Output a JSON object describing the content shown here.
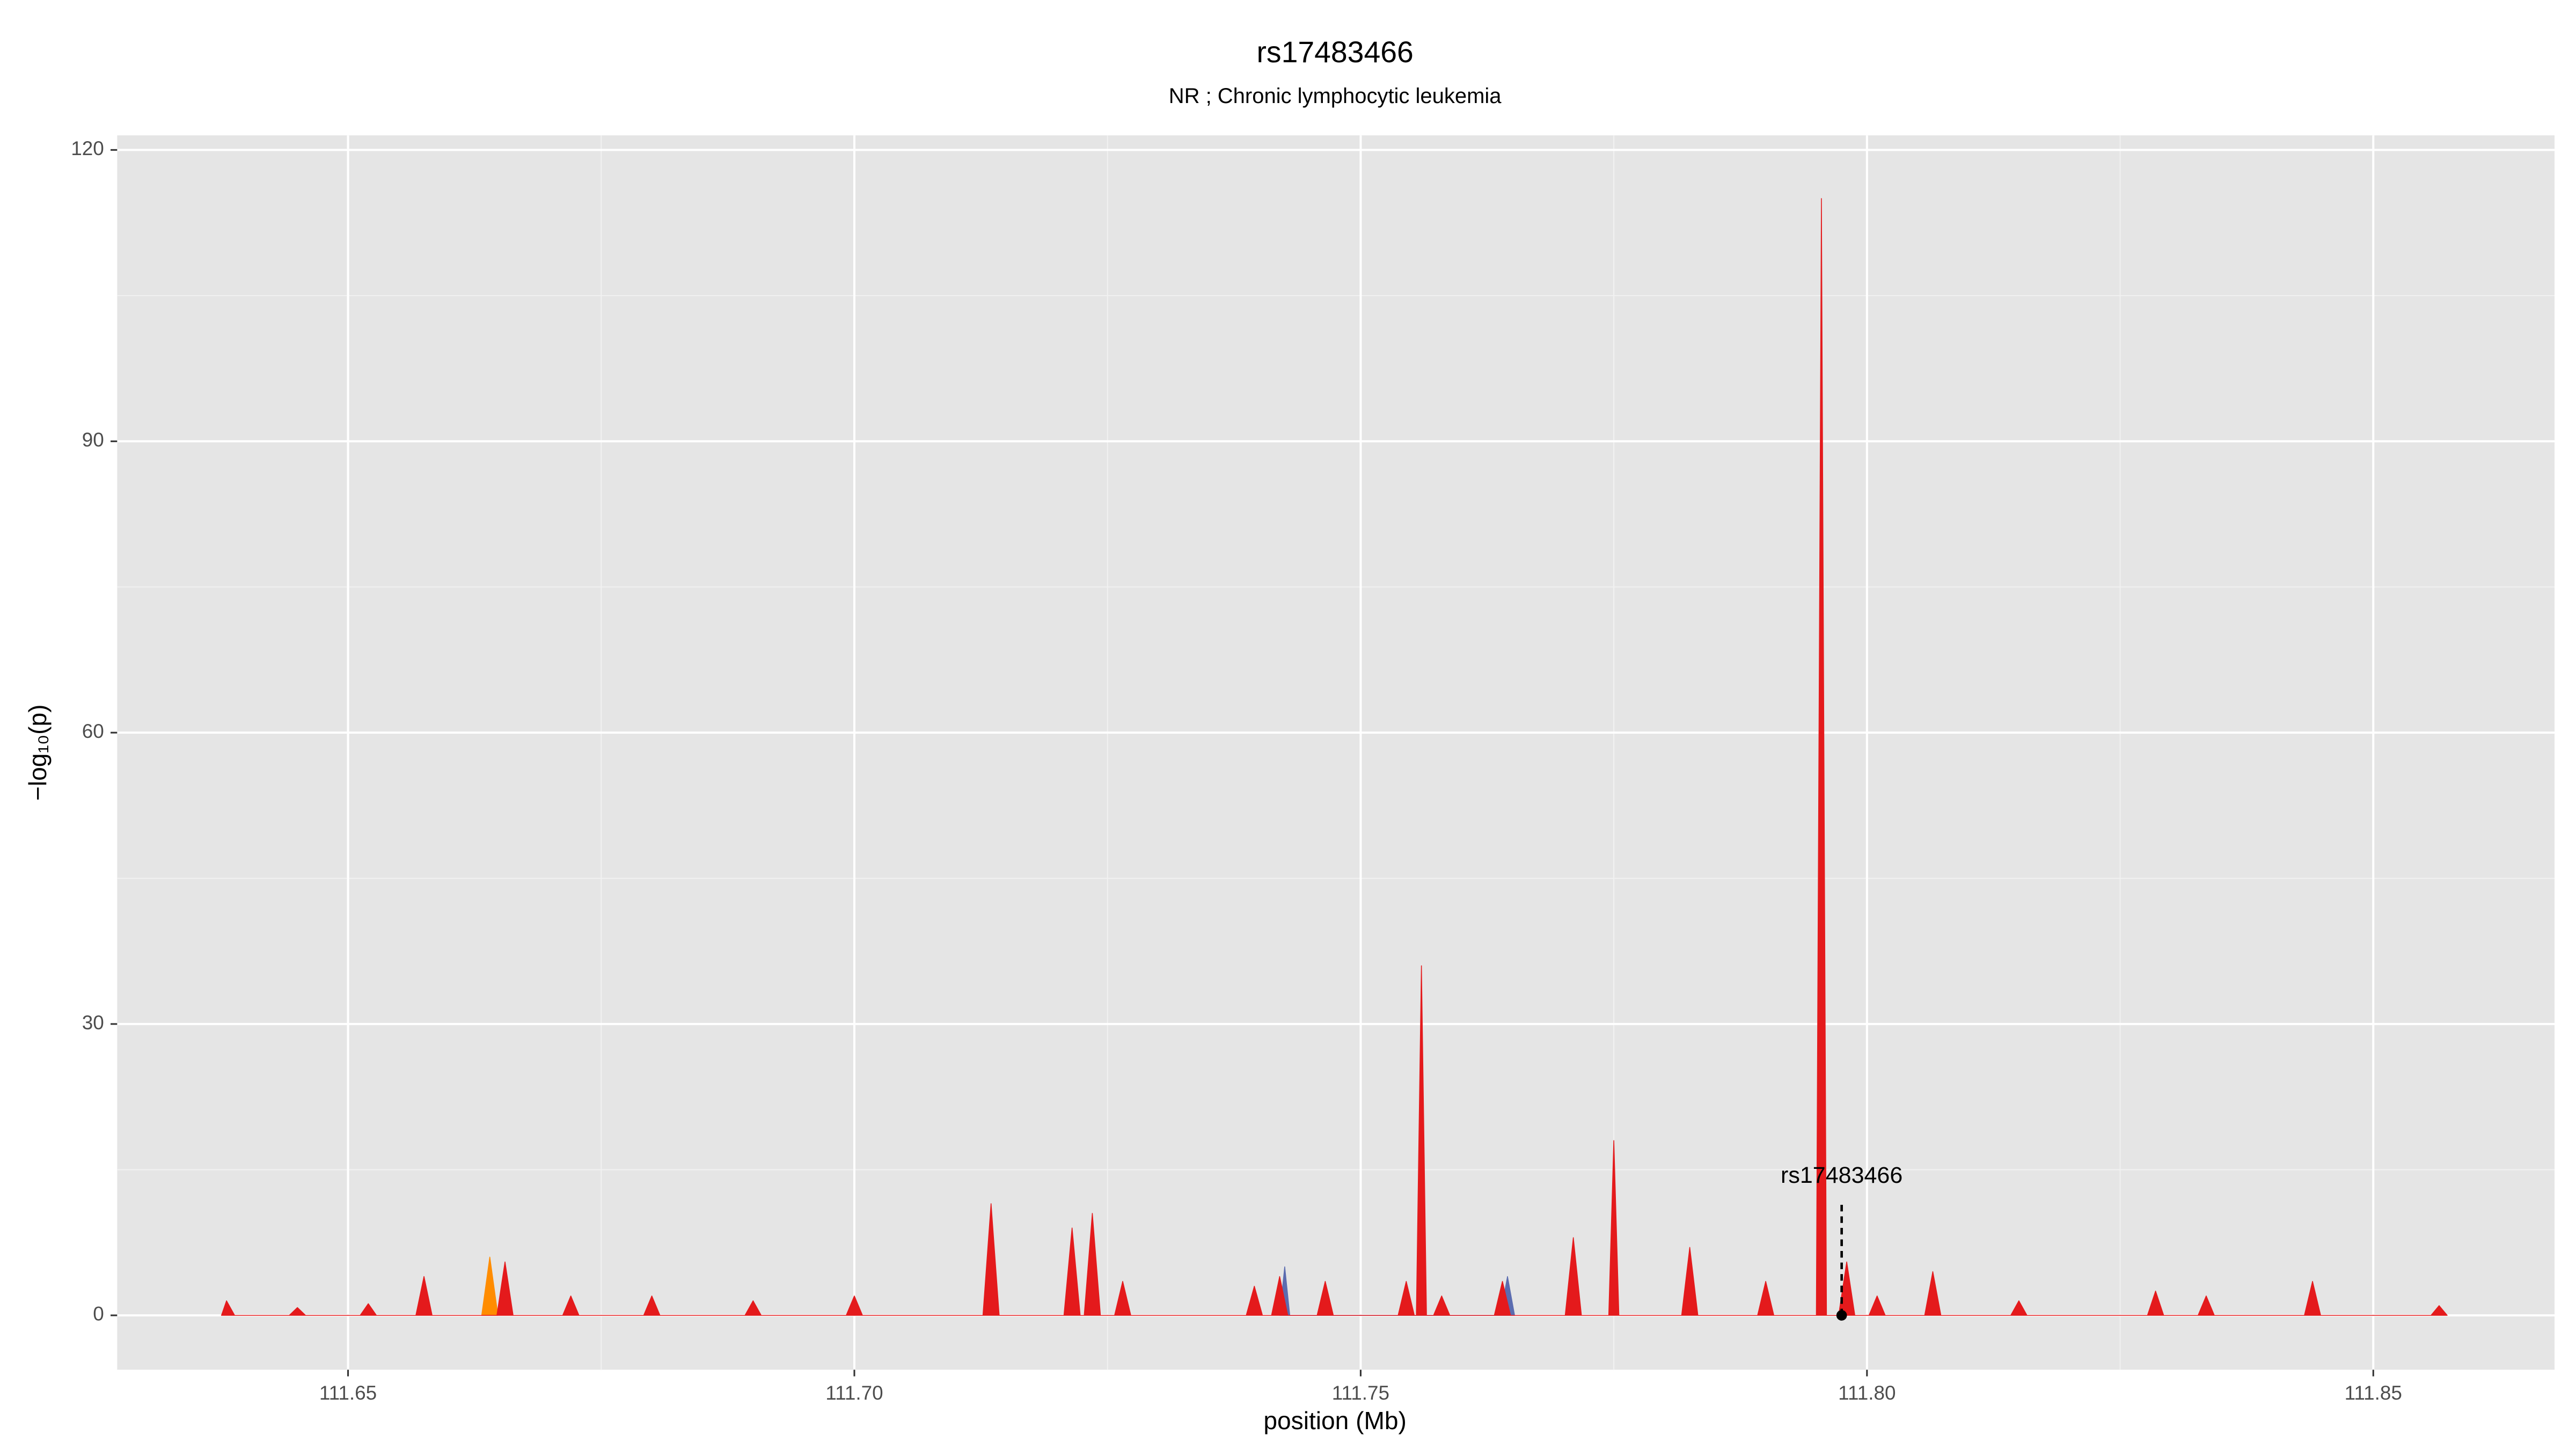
{
  "chart_data": {
    "type": "area",
    "title": "rs17483466",
    "subtitle": "NR ; Chronic lymphocytic leukemia",
    "x_label": "position (Mb)",
    "y_label": "−log₁₀(p)",
    "xlim": [
      111.6272,
      111.8679
    ],
    "ylim": [
      -5.6,
      121.5
    ],
    "xticks": [
      111.65,
      {
        "value": 111.7,
        "label": "111.70"
      },
      111.75,
      {
        "value": 111.8,
        "label": "111.80"
      },
      111.85
    ],
    "yticks": [
      0,
      30,
      60,
      90,
      120
    ],
    "grid": true,
    "series": [
      {
        "color": "#ff8c00",
        "x": [
          111.6632,
          111.664,
          111.6648
        ],
        "values": [
          0,
          6,
          0
        ]
      },
      {
        "color": "#5b6cb0",
        "x": [
          111.742,
          111.7425,
          111.743,
          111.7638,
          111.7645,
          111.7652
        ],
        "values": [
          0,
          5,
          0,
          0,
          4,
          0
        ]
      },
      {
        "color": "#e41a1c",
        "x": [
          111.6375,
          111.638,
          111.6388,
          111.6442,
          111.645,
          111.6458,
          111.6512,
          111.652,
          111.6528,
          111.6567,
          111.6575,
          111.6583,
          111.6647,
          111.6655,
          111.6663,
          111.6712,
          111.672,
          111.6728,
          111.6792,
          111.68,
          111.6808,
          111.6892,
          111.69,
          111.6908,
          111.6992,
          111.7,
          111.7008,
          111.7127,
          111.7135,
          111.7143,
          111.7207,
          111.7215,
          111.7223,
          111.7227,
          111.7235,
          111.7243,
          111.7257,
          111.7265,
          111.7273,
          111.7387,
          111.7395,
          111.7403,
          111.7412,
          111.742,
          111.7428,
          111.7457,
          111.7465,
          111.7473,
          111.7537,
          111.7545,
          111.7553,
          111.7555,
          111.756,
          111.7565,
          111.7572,
          111.758,
          111.7588,
          111.7632,
          111.764,
          111.7648,
          111.7702,
          111.771,
          111.7718,
          111.7745,
          111.775,
          111.7755,
          111.7817,
          111.7825,
          111.7833,
          111.7892,
          111.79,
          111.7908,
          111.795,
          111.7955,
          111.796,
          111.7972,
          111.798,
          111.7988,
          111.8002,
          111.801,
          111.8018,
          111.8057,
          111.8065,
          111.8073,
          111.8142,
          111.815,
          111.8158,
          111.8277,
          111.8285,
          111.8293,
          111.8327,
          111.8335,
          111.8343,
          111.8432,
          111.844,
          111.8448,
          111.8557,
          111.8565,
          111.8573
        ],
        "values": [
          0,
          1.5,
          0,
          0,
          0.8,
          0,
          0,
          1.2,
          0,
          0,
          4,
          0,
          0,
          5.5,
          0,
          0,
          2,
          0,
          0,
          2,
          0,
          0,
          1.5,
          0,
          0,
          2,
          0,
          0,
          11.5,
          0,
          0,
          9,
          0,
          0,
          10.5,
          0,
          0,
          3.5,
          0,
          0,
          3,
          0,
          0,
          4,
          0,
          0,
          3.5,
          0,
          0,
          3.5,
          0,
          0,
          36,
          0,
          0,
          2,
          0,
          0,
          3.5,
          0,
          0,
          8,
          0,
          0,
          18,
          0,
          0,
          7,
          0,
          0,
          3.5,
          0,
          0,
          115,
          0,
          0,
          5.5,
          0,
          0,
          2,
          0,
          0,
          4.5,
          0,
          0,
          1.5,
          0,
          0,
          2.5,
          0,
          0,
          2,
          0,
          0,
          3.5,
          0,
          0,
          1,
          0
        ]
      }
    ],
    "annotations": [
      {
        "text": "rs17483466",
        "x": 111.7975,
        "y": 0
      }
    ]
  }
}
